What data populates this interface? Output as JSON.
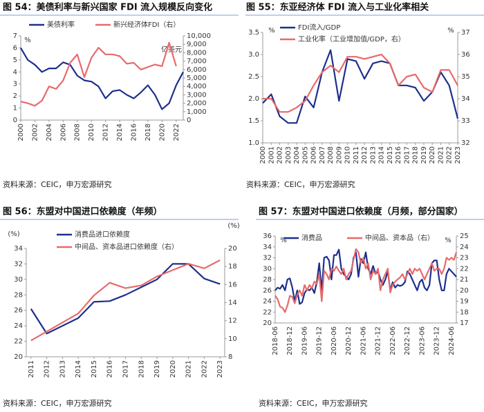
{
  "chart_data": [
    {
      "type": "line",
      "title": "图 54：美债利率与新兴国家 FDI 流入规模反向变化",
      "source": "资料来源：CEIC，申万宏源研究",
      "y_unit": "%",
      "y2_unit": "亿美元",
      "x": [
        2000,
        2001,
        2002,
        2003,
        2004,
        2005,
        2006,
        2007,
        2008,
        2009,
        2010,
        2011,
        2012,
        2013,
        2014,
        2015,
        2016,
        2017,
        2018,
        2019,
        2020,
        2021,
        2022,
        2023
      ],
      "xlim": [
        2000,
        2023
      ],
      "xticks": [
        2000,
        2002,
        2004,
        2006,
        2008,
        2010,
        2012,
        2014,
        2016,
        2018,
        2020,
        2022
      ],
      "ylim": [
        0,
        7
      ],
      "yticks": [
        0,
        1,
        2,
        3,
        4,
        5,
        6,
        7
      ],
      "y2lim": [
        0,
        10000
      ],
      "y2ticks": [
        0,
        {
          "value": 1000,
          "label": "1,000"
        },
        {
          "value": 2000,
          "label": "2,000"
        },
        {
          "value": 3000,
          "label": "3,000"
        },
        {
          "value": 4000,
          "label": "4,000"
        },
        {
          "value": 5000,
          "label": "5,000"
        },
        {
          "value": 6000,
          "label": "6,000"
        },
        {
          "value": 7000,
          "label": "7,000"
        },
        {
          "value": 8000,
          "label": "8,000"
        },
        {
          "value": 9000,
          "label": "9,000"
        },
        {
          "value": 10000,
          "label": "10,000"
        }
      ],
      "series": [
        {
          "name": "美债利率",
          "color": "#1c2f8c",
          "values": [
            6.0,
            5.0,
            4.6,
            4.0,
            4.3,
            4.3,
            4.8,
            4.6,
            3.7,
            3.3,
            3.2,
            2.8,
            1.8,
            2.4,
            2.5,
            2.1,
            1.8,
            2.3,
            2.9,
            2.1,
            0.9,
            1.4,
            2.9,
            4.0
          ]
        },
        {
          "name": "新兴经济体FDI（右）",
          "color": "#e8696b",
          "axis": "y2",
          "values": [
            2200,
            2000,
            1700,
            2300,
            4000,
            3700,
            4700,
            6800,
            7800,
            5100,
            7400,
            8600,
            7800,
            7800,
            7600,
            6700,
            6800,
            6000,
            6300,
            6600,
            6400,
            9200,
            6400,
            null
          ]
        }
      ]
    },
    {
      "type": "line",
      "title": "图 55：东亚经济体 FDI 流入与工业化率相关",
      "source": "资料来源：CEIC，申万宏源研究",
      "y_unit": "%",
      "y2_unit": "%",
      "x": [
        2000,
        2001,
        2002,
        2003,
        2004,
        2005,
        2006,
        2007,
        2008,
        2009,
        2010,
        2011,
        2012,
        2013,
        2014,
        2015,
        2016,
        2017,
        2018,
        2019,
        2020,
        2021,
        2022,
        2023
      ],
      "xlim": [
        2000,
        2023
      ],
      "xticks": [
        2000,
        2001,
        2002,
        2003,
        2004,
        2005,
        2006,
        2007,
        2008,
        2009,
        2010,
        2011,
        2012,
        2013,
        2014,
        2015,
        2016,
        2017,
        2018,
        2019,
        2020,
        2021,
        2022,
        2023
      ],
      "ylim": [
        1,
        3.5
      ],
      "yticks": [
        {
          "value": 1,
          "label": "1.0"
        },
        1.5,
        {
          "value": 2,
          "label": "2.0"
        },
        2.5,
        {
          "value": 3,
          "label": "3.0"
        },
        3.5
      ],
      "y2lim": [
        32,
        37
      ],
      "y2ticks": [
        32,
        33,
        34,
        35,
        36,
        37
      ],
      "series": [
        {
          "name": "FDI流入/GDP",
          "color": "#1c2f8c",
          "values": [
            1.9,
            2.1,
            1.6,
            1.45,
            1.45,
            2.05,
            1.8,
            2.6,
            3.1,
            1.95,
            2.9,
            2.85,
            2.45,
            2.8,
            2.85,
            2.8,
            2.3,
            2.3,
            2.25,
            1.95,
            2.15,
            2.6,
            2.3,
            1.55
          ]
        },
        {
          "name": "工业化率（工业增加值/GDP，右）",
          "color": "#e8696b",
          "axis": "y2",
          "values": [
            34.0,
            34.0,
            33.4,
            33.4,
            33.6,
            33.9,
            34.6,
            35.2,
            35.5,
            35.2,
            35.9,
            35.9,
            35.8,
            35.9,
            36.0,
            35.6,
            34.6,
            35.0,
            35.1,
            34.5,
            34.3,
            35.3,
            35.3,
            34.6
          ]
        }
      ]
    },
    {
      "type": "line",
      "title": "图 56：东盟对中国进口依赖度（年频）",
      "source": "资料来源：CEIC，申万宏源研究",
      "y_unit": "(%)",
      "y2_unit": "(%)",
      "x": [
        2011,
        2012,
        2013,
        2014,
        2015,
        2016,
        2017,
        2018,
        2019,
        2020,
        2021,
        2022,
        2023
      ],
      "xlim": [
        2010.7,
        2023.3
      ],
      "xticks": [
        2011,
        2012,
        2013,
        2014,
        2015,
        2016,
        2017,
        2018,
        2019,
        2020,
        2021,
        2022,
        2023
      ],
      "ylim": [
        20,
        34
      ],
      "yticks": [
        20,
        22,
        24,
        26,
        28,
        30,
        32,
        34
      ],
      "y2lim": [
        8,
        20
      ],
      "y2ticks": [
        8,
        10,
        12,
        14,
        16,
        18,
        20
      ],
      "series": [
        {
          "name": "消费品进口依赖度",
          "color": "#1c2f8c",
          "values": [
            26.2,
            23.0,
            24.0,
            25.0,
            27.1,
            27.2,
            28.0,
            29.0,
            30.0,
            32.0,
            32.0,
            30.1,
            29.4
          ]
        },
        {
          "name": "中间品、资本品进口依赖度（右）",
          "color": "#e8696b",
          "axis": "y2",
          "values": [
            9.8,
            10.8,
            11.8,
            12.8,
            14.8,
            16.2,
            15.6,
            15.9,
            16.9,
            17.6,
            18.3,
            17.8,
            18.7
          ]
        }
      ]
    },
    {
      "type": "line",
      "title": "图 57：东盟对中国进口依赖度（月频，部分国家）",
      "source": "资料来源：CEIC，申万宏源研究",
      "y_unit": "%",
      "y2_unit": "%",
      "categories": [
        "2018-06",
        null,
        null,
        null,
        null,
        null,
        "2018-12",
        null,
        null,
        null,
        null,
        null,
        "2019-06",
        null,
        null,
        null,
        null,
        null,
        "2019-12",
        null,
        null,
        null,
        null,
        null,
        "2020-06",
        null,
        null,
        null,
        null,
        null,
        "2020-12",
        null,
        null,
        null,
        null,
        null,
        "2021-06",
        null,
        null,
        null,
        null,
        null,
        "2021-12",
        null,
        null,
        null,
        null,
        null,
        "2022-06",
        null,
        null,
        null,
        null,
        null,
        "2022-12",
        null,
        null,
        null,
        null,
        null,
        "2023-06",
        null,
        null,
        null,
        null,
        null,
        "2023-12",
        null,
        null,
        null,
        null,
        null,
        "2024-06",
        null,
        null
      ],
      "ylim": [
        20,
        36
      ],
      "yticks": [
        20,
        22,
        24,
        26,
        28,
        30,
        32,
        34,
        36
      ],
      "y2lim": [
        17,
        25
      ],
      "y2ticks": [
        17,
        18,
        19,
        20,
        21,
        22,
        23,
        24,
        25
      ],
      "series": [
        {
          "name": "消费品",
          "color": "#1c2f8c",
          "values": [
            26,
            26.5,
            26.3,
            27,
            26,
            28,
            28.2,
            26.5,
            24,
            26,
            23.5,
            23.8,
            25.5,
            26.2,
            26,
            26.5,
            25.5,
            27.5,
            31,
            26,
            32,
            32.2,
            31.5,
            28,
            32.5,
            32.5,
            33.5,
            30,
            29,
            28.5,
            28,
            29,
            32,
            33,
            28.5,
            31.8,
            31,
            33,
            30,
            29,
            30.5,
            29,
            29.5,
            28,
            27,
            28,
            29.5,
            26,
            27.5,
            26.5,
            27,
            26.8,
            27,
            27.5,
            29.5,
            29,
            28,
            27,
            26,
            27.5,
            28,
            26.5,
            26,
            27,
            31,
            31.5,
            31.5,
            28,
            26,
            26,
            29,
            30,
            29.5,
            29,
            28.5
          ]
        },
        {
          "name": "中间品、资本品（右）",
          "color": "#e8696b",
          "axis": "y2",
          "values": [
            19.5,
            19.2,
            18.5,
            18.4,
            18,
            18.6,
            19.5,
            19.4,
            18.8,
            19.6,
            20,
            19.5,
            20.5,
            20,
            20.5,
            20.2,
            20.8,
            20.6,
            21.5,
            19,
            21.8,
            21.5,
            21,
            22,
            21.8,
            22.2,
            21.8,
            21.5,
            22,
            21,
            21.5,
            21.8,
            22.8,
            23.8,
            23.5,
            22.5,
            23,
            22,
            22.5,
            21,
            21.8,
            21.5,
            22,
            20,
            21,
            21.5,
            22,
            19.8,
            20.5,
            20.8,
            21,
            21.2,
            21.5,
            21,
            21.5,
            22,
            21.5,
            22,
            21.8,
            22,
            21.5,
            21,
            21.5,
            22,
            22.5,
            21.8,
            22,
            22,
            21.5,
            22,
            23,
            22.8,
            23,
            22.8,
            23.5
          ]
        }
      ]
    }
  ]
}
